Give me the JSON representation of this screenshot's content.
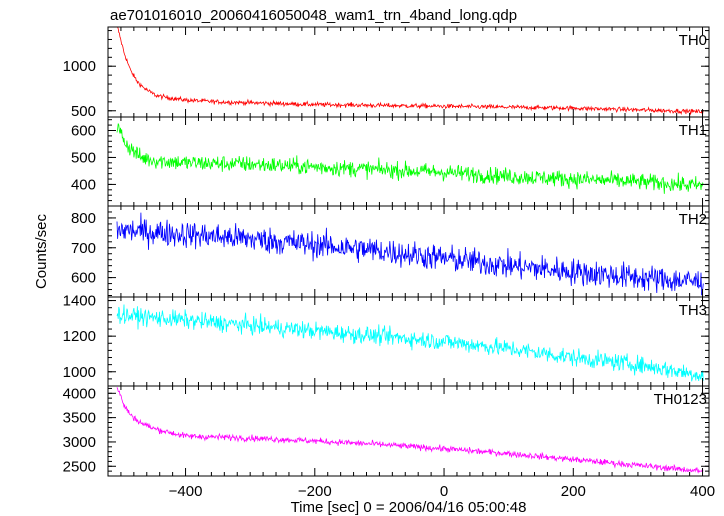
{
  "chart_data": {
    "type": "line",
    "title": "ae701016010_20060416050048_wam1_trn_4band_long.qdp",
    "xlabel": "Time [sec] 0 = 2006/04/16 05:00:48",
    "ylabel": "Counts/sec",
    "xlim": [
      -520,
      410
    ],
    "x_ticks": [
      -400,
      -200,
      0,
      200,
      400
    ],
    "grid": false,
    "panels": [
      {
        "name": "TH0",
        "color": "#ff0000",
        "ylim": [
          430,
          1440
        ],
        "y_ticks": [
          500,
          1000
        ],
        "x_samples": [
          -505,
          -495,
          -485,
          -475,
          -465,
          -455,
          -445,
          -430,
          -400,
          -350,
          -300,
          -200,
          -100,
          0,
          100,
          200,
          300,
          400
        ],
        "y_samples": [
          1430,
          1150,
          950,
          830,
          760,
          710,
          670,
          650,
          620,
          600,
          590,
          570,
          560,
          550,
          540,
          530,
          510,
          490
        ],
        "noise": 18
      },
      {
        "name": "TH1",
        "color": "#00ff00",
        "ylim": [
          320,
          650
        ],
        "y_ticks": [
          400,
          500,
          600
        ],
        "x_samples": [
          -505,
          -490,
          -470,
          -450,
          -400,
          -300,
          -200,
          -100,
          0,
          100,
          200,
          300,
          400
        ],
        "y_samples": [
          610,
          545,
          500,
          490,
          480,
          475,
          465,
          455,
          445,
          430,
          420,
          410,
          395
        ],
        "noise": 22
      },
      {
        "name": "TH2",
        "color": "#0000ff",
        "ylim": [
          535,
          840
        ],
        "y_ticks": [
          600,
          700,
          800
        ],
        "x_samples": [
          -505,
          -400,
          -300,
          -200,
          -100,
          0,
          100,
          200,
          300,
          400
        ],
        "y_samples": [
          760,
          745,
          730,
          710,
          690,
          665,
          640,
          620,
          600,
          585
        ],
        "noise": 32
      },
      {
        "name": "TH3",
        "color": "#00ffff",
        "ylim": [
          920,
          1420
        ],
        "y_ticks": [
          1000,
          1200,
          1400
        ],
        "x_samples": [
          -505,
          -400,
          -300,
          -200,
          -100,
          0,
          100,
          200,
          300,
          400
        ],
        "y_samples": [
          1320,
          1290,
          1260,
          1230,
          1200,
          1170,
          1130,
          1080,
          1040,
          980
        ],
        "noise": 35
      },
      {
        "name": "TH0123",
        "color": "#ff00ff",
        "ylim": [
          2300,
          4150
        ],
        "y_ticks": [
          2500,
          3000,
          3500,
          4000
        ],
        "x_samples": [
          -505,
          -495,
          -485,
          -470,
          -450,
          -420,
          -400,
          -300,
          -200,
          -100,
          0,
          100,
          200,
          300,
          400
        ],
        "y_samples": [
          4100,
          3750,
          3550,
          3400,
          3280,
          3180,
          3120,
          3080,
          3020,
          2950,
          2860,
          2760,
          2640,
          2520,
          2400
        ],
        "noise": 45
      }
    ]
  }
}
